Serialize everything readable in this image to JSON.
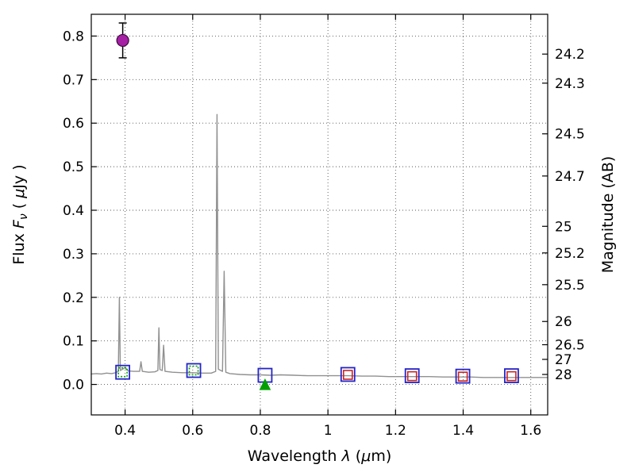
{
  "figure": {
    "background": "#ffffff",
    "frame_color": "#000000"
  },
  "chart_data": {
    "type": "line",
    "title": "",
    "xlabel": "Wavelength λ (μm)",
    "ylabel_left": "Flux Fν ( μJy )",
    "ylabel_right": "Magnitude (AB)",
    "xlabel_parts": [
      {
        "t": "Wavelength  "
      },
      {
        "t": "λ",
        "i": true
      },
      {
        "t": " ("
      },
      {
        "t": "μ",
        "i": true
      },
      {
        "t": "m)"
      }
    ],
    "ylabel_left_parts": [
      {
        "t": "Flux  "
      },
      {
        "t": "F",
        "i": true
      },
      {
        "t": "ν",
        "i": true,
        "sub": true
      },
      {
        "t": "  ( "
      },
      {
        "t": "μ",
        "i": true
      },
      {
        "t": "Jy )"
      }
    ],
    "ylabel_right_parts": [
      {
        "t": "Magnitude (AB)"
      }
    ],
    "xlim": [
      0.3,
      1.65
    ],
    "ylim": [
      -0.07,
      0.85
    ],
    "x_ticks": [
      0.4,
      0.6,
      0.8,
      1.0,
      1.2,
      1.4,
      1.6
    ],
    "x_tick_labels": [
      "0.4",
      "0.6",
      "0.8",
      "1",
      "1.2",
      "1.4",
      "1.6"
    ],
    "y_ticks_left": [
      0.0,
      0.1,
      0.2,
      0.3,
      0.4,
      0.5,
      0.6,
      0.7,
      0.8
    ],
    "y_tick_labels_left": [
      "0.0",
      "0.1",
      "0.2",
      "0.3",
      "0.4",
      "0.5",
      "0.6",
      "0.7",
      "0.8"
    ],
    "y_ticks_right_mag": [
      24.2,
      24.3,
      24.5,
      24.7,
      25.0,
      25.2,
      25.5,
      26.0,
      26.5,
      27.0,
      28.0
    ],
    "y_tick_labels_right": [
      "24.2",
      "24.3",
      "24.5",
      "24.7",
      "25",
      "25.2",
      "25.5",
      "26",
      "26.5",
      "27",
      "28"
    ],
    "mag_zeropoint": 23.9,
    "grid": {
      "show": true,
      "style": "dotted",
      "color": "#555555"
    },
    "series": [
      {
        "name": "model-spectrum",
        "type": "line",
        "color": "#909090",
        "width": 1.4,
        "points": [
          [
            0.3,
            0.024
          ],
          [
            0.315,
            0.025
          ],
          [
            0.33,
            0.024
          ],
          [
            0.345,
            0.026
          ],
          [
            0.36,
            0.025
          ],
          [
            0.372,
            0.027
          ],
          [
            0.38,
            0.03
          ],
          [
            0.383,
            0.2
          ],
          [
            0.386,
            0.032
          ],
          [
            0.395,
            0.036
          ],
          [
            0.4,
            0.04
          ],
          [
            0.404,
            0.034
          ],
          [
            0.41,
            0.031
          ],
          [
            0.425,
            0.03
          ],
          [
            0.443,
            0.03
          ],
          [
            0.447,
            0.052
          ],
          [
            0.451,
            0.03
          ],
          [
            0.47,
            0.028
          ],
          [
            0.488,
            0.029
          ],
          [
            0.497,
            0.032
          ],
          [
            0.5,
            0.13
          ],
          [
            0.503,
            0.034
          ],
          [
            0.51,
            0.032
          ],
          [
            0.514,
            0.09
          ],
          [
            0.518,
            0.03
          ],
          [
            0.54,
            0.028
          ],
          [
            0.57,
            0.027
          ],
          [
            0.6,
            0.027
          ],
          [
            0.63,
            0.026
          ],
          [
            0.655,
            0.026
          ],
          [
            0.668,
            0.03
          ],
          [
            0.672,
            0.62
          ],
          [
            0.676,
            0.035
          ],
          [
            0.688,
            0.03
          ],
          [
            0.693,
            0.26
          ],
          [
            0.698,
            0.028
          ],
          [
            0.71,
            0.025
          ],
          [
            0.74,
            0.023
          ],
          [
            0.77,
            0.022
          ],
          [
            0.8,
            0.022
          ],
          [
            0.83,
            0.021
          ],
          [
            0.86,
            0.022
          ],
          [
            0.9,
            0.021
          ],
          [
            0.94,
            0.02
          ],
          [
            0.98,
            0.02
          ],
          [
            1.02,
            0.02
          ],
          [
            1.06,
            0.02
          ],
          [
            1.1,
            0.019
          ],
          [
            1.14,
            0.019
          ],
          [
            1.18,
            0.018
          ],
          [
            1.22,
            0.018
          ],
          [
            1.26,
            0.018
          ],
          [
            1.3,
            0.018
          ],
          [
            1.34,
            0.017
          ],
          [
            1.38,
            0.017
          ],
          [
            1.42,
            0.017
          ],
          [
            1.46,
            0.016
          ],
          [
            1.5,
            0.016
          ],
          [
            1.54,
            0.016
          ],
          [
            1.58,
            0.016
          ],
          [
            1.62,
            0.016
          ],
          [
            1.65,
            0.016
          ]
        ]
      },
      {
        "name": "observed-photometry",
        "type": "scatter",
        "marker": "square-open",
        "color": "#2424c8",
        "size": 17,
        "stroke_width": 1.8,
        "points": [
          [
            0.393,
            0.028
          ],
          [
            0.603,
            0.032
          ],
          [
            0.814,
            0.021
          ],
          [
            1.059,
            0.023
          ],
          [
            1.249,
            0.02
          ],
          [
            1.399,
            0.019
          ],
          [
            1.543,
            0.02
          ]
        ]
      },
      {
        "name": "model-photometry-optical",
        "type": "scatter",
        "marker": "square-open-dotted",
        "color": "#00a000",
        "size": 11,
        "stroke_width": 1.6,
        "points": [
          [
            0.393,
            0.028
          ],
          [
            0.603,
            0.032
          ]
        ]
      },
      {
        "name": "model-photometry-infrared",
        "type": "scatter",
        "marker": "square-open",
        "color": "#cc2222",
        "size": 11,
        "stroke_width": 1.6,
        "points": [
          [
            1.059,
            0.022
          ],
          [
            1.249,
            0.019
          ],
          [
            1.399,
            0.018
          ],
          [
            1.543,
            0.019
          ]
        ]
      },
      {
        "name": "upper-limit-marker",
        "type": "scatter",
        "marker": "triangle-up",
        "color": "#00a000",
        "size": 13,
        "points": [
          [
            0.814,
            0.0
          ]
        ]
      },
      {
        "name": "detected-point",
        "type": "scatter",
        "marker": "circle",
        "color": "#a520a5",
        "edge": "#3a0a3a",
        "size": 15,
        "err": [
          0.04,
          0.04
        ],
        "err_color": "#000000",
        "points": [
          [
            0.393,
            0.79
          ]
        ]
      }
    ]
  }
}
